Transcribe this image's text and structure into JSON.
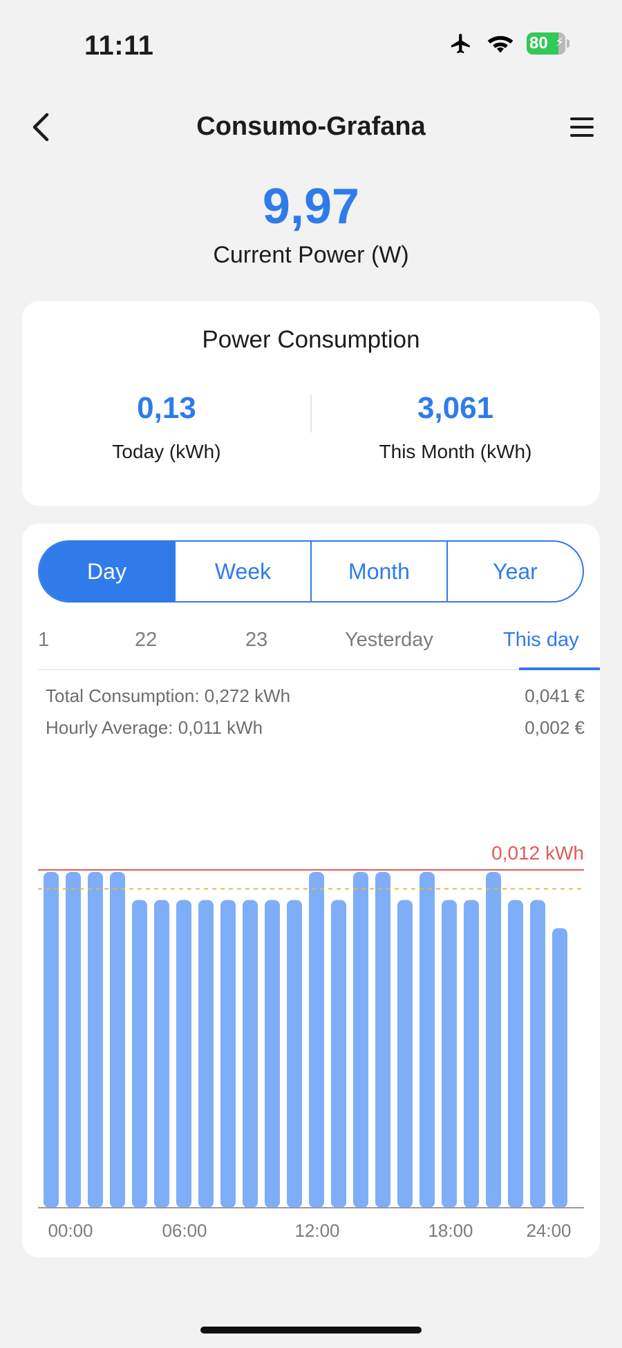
{
  "status_bar": {
    "time": "11:11",
    "battery": "80"
  },
  "nav": {
    "title": "Consumo-Grafana",
    "back_icon": "chevron-left-icon",
    "menu_icon": "hamburger-menu-icon"
  },
  "current_power": {
    "value": "9,97",
    "label": "Current Power (W)"
  },
  "power_consumption": {
    "title": "Power Consumption",
    "today": {
      "value": "0,13",
      "label": "Today (kWh)"
    },
    "month": {
      "value": "3,061",
      "label": "This Month (kWh)"
    }
  },
  "period_tabs": {
    "items": [
      "Day",
      "Week",
      "Month",
      "Year"
    ],
    "selected": "Day"
  },
  "date_tabs": {
    "items": [
      "1",
      "22",
      "23",
      "Yesterday",
      "This day"
    ],
    "selected": "This day"
  },
  "summary": {
    "total_label": "Total Consumption: 0,272 kWh",
    "total_cost": "0,041 €",
    "avg_label": "Hourly Average: 0,011 kWh",
    "avg_cost": "0,002 €"
  },
  "colors": {
    "accent": "#2f7bea",
    "bar": "#7eaef8",
    "max_line": "#e05a5a",
    "avg_line": "#f0b24a"
  },
  "chart_data": {
    "type": "bar",
    "categories": [
      "00",
      "01",
      "02",
      "03",
      "04",
      "05",
      "06",
      "07",
      "08",
      "09",
      "10",
      "11",
      "12",
      "13",
      "14",
      "15",
      "16",
      "17",
      "18",
      "19",
      "20",
      "21",
      "22",
      "23"
    ],
    "values": [
      0.012,
      0.012,
      0.012,
      0.012,
      0.011,
      0.011,
      0.011,
      0.011,
      0.011,
      0.011,
      0.011,
      0.011,
      0.012,
      0.011,
      0.012,
      0.012,
      0.011,
      0.012,
      0.011,
      0.011,
      0.012,
      0.011,
      0.011,
      0.01
    ],
    "max_label": "0,012 kWh",
    "max_value": 0.012,
    "average_value": 0.0113,
    "x_tick_labels": [
      "00:00",
      "06:00",
      "12:00",
      "18:00",
      "24:00"
    ],
    "ylim": [
      0,
      0.012
    ]
  }
}
